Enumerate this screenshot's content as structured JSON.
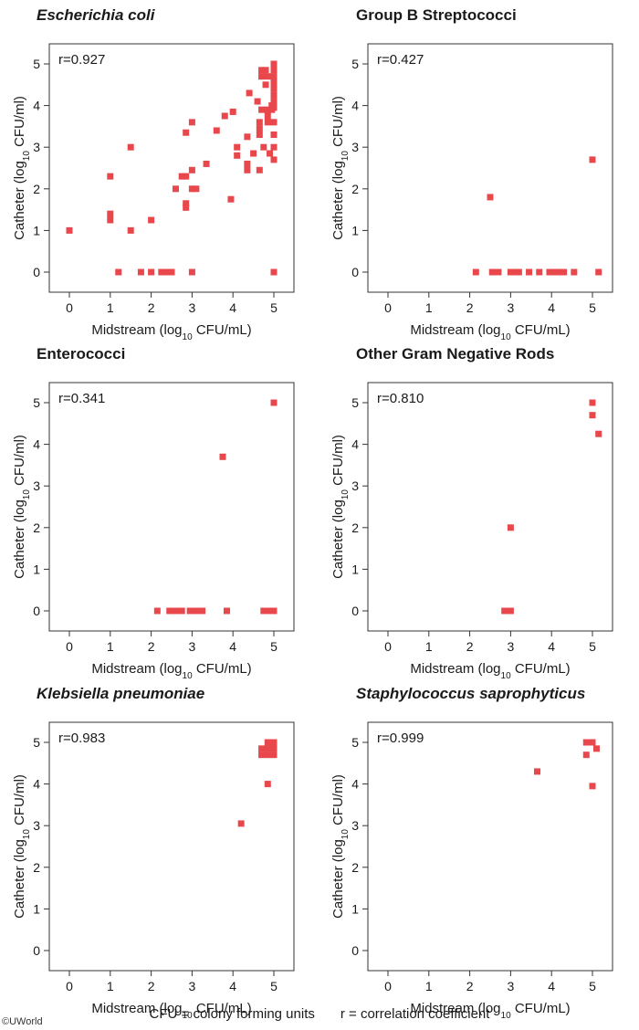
{
  "footer": {
    "note_cfu": "CFU = colony forming units",
    "note_r": "r = correlation coefficient"
  },
  "copyright": "©UWorld",
  "colors": {
    "marker": "#e8474c",
    "axis": "#333333"
  },
  "chart_data": [
    {
      "type": "scatter",
      "title": "Escherichia coli",
      "title_italic": true,
      "annotation": "r=0.927",
      "xlabel": "Midstream (log10 CFU/mL)",
      "ylabel": "Catheter (log10 CFU/ml)",
      "xlim": [
        0,
        5
      ],
      "ylim": [
        0,
        5
      ],
      "xticks": [
        "0",
        "1",
        "2",
        "3",
        "4",
        "5"
      ],
      "yticks": [
        "0",
        "1",
        "2",
        "3",
        "4",
        "5"
      ],
      "points": [
        [
          0,
          1
        ],
        [
          1,
          2.3
        ],
        [
          1,
          1.4
        ],
        [
          1,
          1.25
        ],
        [
          1.2,
          0
        ],
        [
          1.5,
          3
        ],
        [
          1.5,
          1
        ],
        [
          1.75,
          0
        ],
        [
          2,
          1.25
        ],
        [
          2,
          0
        ],
        [
          2.25,
          0
        ],
        [
          2.4,
          0
        ],
        [
          2.5,
          0
        ],
        [
          2.6,
          2
        ],
        [
          2.75,
          2.3
        ],
        [
          2.85,
          2.3
        ],
        [
          2.85,
          1.65
        ],
        [
          2.85,
          1.55
        ],
        [
          2.85,
          3.35
        ],
        [
          3,
          3.6
        ],
        [
          3,
          2.45
        ],
        [
          3,
          2
        ],
        [
          3.1,
          2
        ],
        [
          3,
          0
        ],
        [
          3.35,
          2.6
        ],
        [
          3.6,
          3.4
        ],
        [
          3.8,
          3.75
        ],
        [
          3.95,
          1.75
        ],
        [
          4,
          3.85
        ],
        [
          4.1,
          3
        ],
        [
          4.1,
          2.8
        ],
        [
          4.35,
          2.6
        ],
        [
          4.35,
          2.45
        ],
        [
          4.35,
          3.25
        ],
        [
          4.4,
          4.3
        ],
        [
          4.5,
          2.85
        ],
        [
          4.6,
          4.1
        ],
        [
          4.65,
          3.6
        ],
        [
          4.65,
          3.45
        ],
        [
          4.65,
          3.3
        ],
        [
          4.65,
          2.45
        ],
        [
          4.7,
          3.9
        ],
        [
          4.7,
          4.85
        ],
        [
          4.7,
          4.7
        ],
        [
          4.75,
          3
        ],
        [
          4.8,
          4.85
        ],
        [
          4.8,
          4.5
        ],
        [
          4.85,
          4.7
        ],
        [
          4.85,
          3.9
        ],
        [
          4.85,
          3.75
        ],
        [
          4.85,
          3.6
        ],
        [
          4.9,
          2.85
        ],
        [
          4.95,
          4
        ],
        [
          4.95,
          3.9
        ],
        [
          5,
          5
        ],
        [
          5,
          4.85
        ],
        [
          5,
          4.7
        ],
        [
          5,
          4.55
        ],
        [
          5,
          4.4
        ],
        [
          5,
          4.25
        ],
        [
          5,
          4.1
        ],
        [
          5,
          3.95
        ],
        [
          5,
          3.6
        ],
        [
          5,
          3.3
        ],
        [
          5,
          3
        ],
        [
          5,
          2.7
        ],
        [
          5,
          0
        ]
      ]
    },
    {
      "type": "scatter",
      "title": "Group B Streptococci",
      "title_italic": false,
      "annotation": "r=0.427",
      "xlabel": "Midstream (log10 CFU/mL)",
      "ylabel": "Catheter (log10 CFU/ml)",
      "xlim": [
        0,
        5
      ],
      "ylim": [
        0,
        5
      ],
      "xticks": [
        "0",
        "1",
        "2",
        "3",
        "4",
        "5"
      ],
      "yticks": [
        "0",
        "1",
        "2",
        "3",
        "4",
        "5"
      ],
      "points": [
        [
          2.15,
          0
        ],
        [
          2.5,
          1.8
        ],
        [
          2.55,
          0
        ],
        [
          2.7,
          0
        ],
        [
          3,
          0
        ],
        [
          3.1,
          0
        ],
        [
          3.2,
          0
        ],
        [
          3.45,
          0
        ],
        [
          3.7,
          0
        ],
        [
          3.95,
          0
        ],
        [
          4.05,
          0
        ],
        [
          4.2,
          0
        ],
        [
          4.3,
          0
        ],
        [
          4.55,
          0
        ],
        [
          5,
          2.7
        ],
        [
          5.15,
          0
        ]
      ]
    },
    {
      "type": "scatter",
      "title": "Enterococci",
      "title_italic": false,
      "annotation": "r=0.341",
      "xlabel": "Midstream (log10 CFU/mL)",
      "ylabel": "Catheter (log10 CFU/ml)",
      "xlim": [
        0,
        5
      ],
      "ylim": [
        0,
        5
      ],
      "xticks": [
        "0",
        "1",
        "2",
        "3",
        "4",
        "5"
      ],
      "yticks": [
        "0",
        "1",
        "2",
        "3",
        "4",
        "5"
      ],
      "points": [
        [
          2.15,
          0
        ],
        [
          2.45,
          0
        ],
        [
          2.6,
          0
        ],
        [
          2.75,
          0
        ],
        [
          2.95,
          0
        ],
        [
          3.1,
          0
        ],
        [
          3.25,
          0
        ],
        [
          3.75,
          3.7
        ],
        [
          3.85,
          0
        ],
        [
          4.75,
          0
        ],
        [
          4.9,
          0
        ],
        [
          5,
          0
        ],
        [
          5,
          5
        ]
      ]
    },
    {
      "type": "scatter",
      "title": "Other Gram Negative Rods",
      "title_italic": false,
      "annotation": "r=0.810",
      "xlabel": "Midstream (log10 CFU/mL)",
      "ylabel": "Catheter (log10 CFU/ml)",
      "xlim": [
        0,
        5
      ],
      "ylim": [
        0,
        5
      ],
      "xticks": [
        "0",
        "1",
        "2",
        "3",
        "4",
        "5"
      ],
      "yticks": [
        "0",
        "1",
        "2",
        "3",
        "4",
        "5"
      ],
      "points": [
        [
          2.85,
          0
        ],
        [
          3,
          0
        ],
        [
          3,
          2
        ],
        [
          5,
          5
        ],
        [
          5,
          4.7
        ],
        [
          5.15,
          4.25
        ]
      ]
    },
    {
      "type": "scatter",
      "title": "Klebsiella pneumoniae",
      "title_italic": true,
      "annotation": "r=0.983",
      "xlabel": "Midstream (log10 CFU/mL)",
      "ylabel": "Catheter (log10 CFU/ml)",
      "xlim": [
        0,
        5
      ],
      "ylim": [
        0,
        5
      ],
      "xticks": [
        "0",
        "1",
        "2",
        "3",
        "4",
        "5"
      ],
      "yticks": [
        "0",
        "1",
        "2",
        "3",
        "4",
        "5"
      ],
      "points": [
        [
          4.2,
          3.05
        ],
        [
          4.7,
          4.85
        ],
        [
          4.7,
          4.7
        ],
        [
          4.85,
          5
        ],
        [
          4.85,
          4.85
        ],
        [
          4.85,
          4.7
        ],
        [
          4.85,
          4
        ],
        [
          5,
          5
        ],
        [
          5,
          4.85
        ],
        [
          5,
          4.7
        ]
      ]
    },
    {
      "type": "scatter",
      "title": "Staphylococcus saprophyticus",
      "title_italic": true,
      "annotation": "r=0.999",
      "xlabel": "Midstream (log10 CFU/mL)",
      "ylabel": "Catheter (log10 CFU/ml)",
      "xlim": [
        0,
        5
      ],
      "ylim": [
        0,
        5
      ],
      "xticks": [
        "0",
        "1",
        "2",
        "3",
        "4",
        "5"
      ],
      "yticks": [
        "0",
        "1",
        "2",
        "3",
        "4",
        "5"
      ],
      "points": [
        [
          3.65,
          4.3
        ],
        [
          4.85,
          5
        ],
        [
          4.85,
          4.7
        ],
        [
          5,
          5
        ],
        [
          5,
          3.95
        ],
        [
          5.1,
          4.85
        ]
      ]
    }
  ]
}
